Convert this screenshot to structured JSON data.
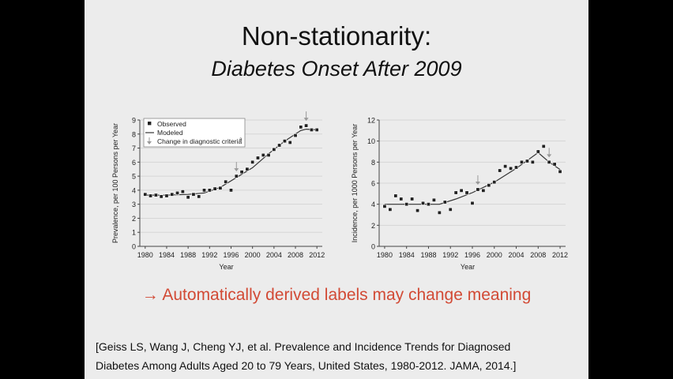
{
  "slide": {
    "title": "Non-stationarity:",
    "subtitle": "Diabetes Onset After 2009",
    "callout": "→ Automatically derived labels may change meaning",
    "citation_line1": "[Geiss LS, Wang J, Cheng YJ, et al. Prevalence and Incidence Trends for Diagnosed",
    "citation_line2": "Diabetes Among Adults Aged 20 to 79 Years, United States, 1980-2012. JAMA, 2014.]"
  },
  "colors": {
    "background": "#000000",
    "slide": "#ececec",
    "callout": "#d24a35",
    "marker": "#222222",
    "line": "#333333",
    "arrow": "#999999",
    "grid": "#d6d6d6"
  },
  "chart_data": [
    {
      "type": "line",
      "xlabel": "Year",
      "ylabel": "Prevalence, per 100 Persons per Year",
      "xlim": [
        1979,
        2013
      ],
      "ylim": [
        0,
        9
      ],
      "xticks": [
        1980,
        1984,
        1988,
        1992,
        1996,
        2000,
        2004,
        2008,
        2012
      ],
      "yticks": [
        0,
        1,
        2,
        3,
        4,
        5,
        6,
        7,
        8,
        9
      ],
      "grid": true,
      "legend": {
        "position": "top-left",
        "observed": "Observed",
        "modeled": "Modeled",
        "change": "Change in diagnostic criteria",
        "change_sup": "a"
      },
      "arrows_at": [
        1997,
        2010
      ],
      "series": [
        {
          "name": "Observed",
          "style": "markers",
          "x": [
            1980,
            1981,
            1982,
            1983,
            1984,
            1985,
            1986,
            1987,
            1988,
            1989,
            1990,
            1991,
            1992,
            1993,
            1994,
            1995,
            1996,
            1997,
            1998,
            1999,
            2000,
            2001,
            2002,
            2003,
            2004,
            2005,
            2006,
            2007,
            2008,
            2009,
            2010,
            2011,
            2012
          ],
          "y": [
            3.7,
            3.6,
            3.65,
            3.55,
            3.6,
            3.7,
            3.8,
            3.9,
            3.5,
            3.7,
            3.55,
            4.0,
            4.0,
            4.1,
            4.15,
            4.6,
            4.0,
            5.0,
            5.3,
            5.5,
            6.0,
            6.3,
            6.5,
            6.5,
            6.9,
            7.2,
            7.5,
            7.4,
            7.9,
            8.5,
            8.6,
            8.3,
            8.3
          ]
        },
        {
          "name": "Modeled",
          "style": "line",
          "x": [
            1980,
            1984,
            1988,
            1991,
            1994,
            1997,
            2000,
            2003,
            2006,
            2009,
            2010,
            2012
          ],
          "y": [
            3.65,
            3.65,
            3.7,
            3.8,
            4.2,
            4.9,
            5.6,
            6.6,
            7.5,
            8.25,
            8.35,
            8.3
          ]
        }
      ]
    },
    {
      "type": "line",
      "xlabel": "Year",
      "ylabel": "Incidence, per 1000 Persons per Year",
      "xlim": [
        1979,
        2013
      ],
      "ylim": [
        0,
        12
      ],
      "xticks": [
        1980,
        1984,
        1988,
        1992,
        1996,
        2000,
        2004,
        2008,
        2012
      ],
      "yticks": [
        0,
        2,
        4,
        6,
        8,
        10,
        12
      ],
      "grid": true,
      "arrows_at": [
        1997,
        2010
      ],
      "series": [
        {
          "name": "Observed",
          "style": "markers",
          "x": [
            1980,
            1981,
            1982,
            1983,
            1984,
            1985,
            1986,
            1987,
            1988,
            1989,
            1990,
            1991,
            1992,
            1993,
            1994,
            1995,
            1996,
            1997,
            1998,
            1999,
            2000,
            2001,
            2002,
            2003,
            2004,
            2005,
            2006,
            2007,
            2008,
            2009,
            2010,
            2011,
            2012
          ],
          "y": [
            3.8,
            3.5,
            4.8,
            4.5,
            4.0,
            4.5,
            3.4,
            4.1,
            4.0,
            4.4,
            3.2,
            4.2,
            3.5,
            5.1,
            5.3,
            5.1,
            4.1,
            5.4,
            5.3,
            5.8,
            6.1,
            7.2,
            7.6,
            7.4,
            7.5,
            8.0,
            8.1,
            8.0,
            9.0,
            9.5,
            8.0,
            7.8,
            7.1
          ]
        },
        {
          "name": "Modeled",
          "style": "line",
          "x": [
            1980,
            1990,
            1993,
            1996,
            2000,
            2004,
            2008,
            2010,
            2012
          ],
          "y": [
            4.0,
            4.0,
            4.5,
            5.1,
            6.1,
            7.4,
            8.9,
            8.0,
            7.3
          ]
        }
      ]
    }
  ]
}
